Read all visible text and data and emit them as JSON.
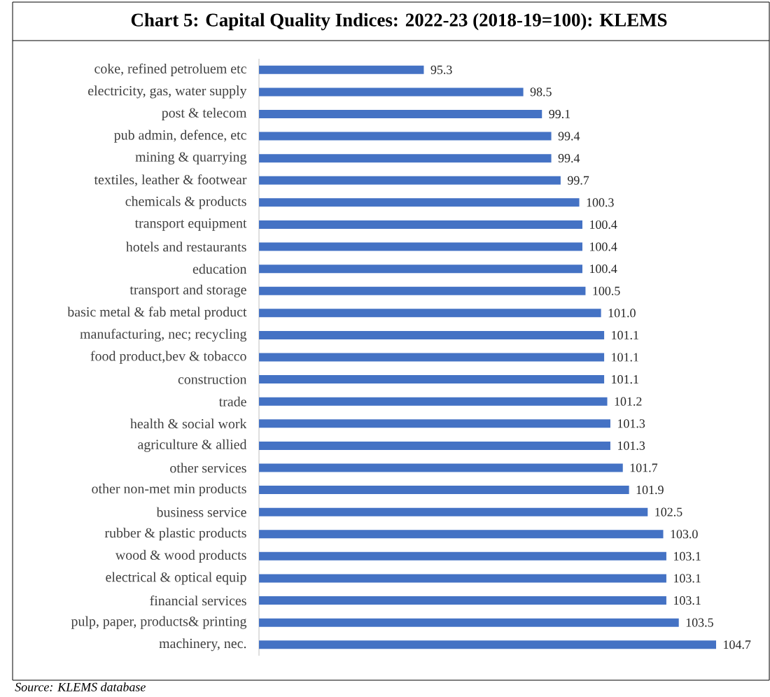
{
  "chart_data": {
    "type": "bar",
    "orientation": "horizontal",
    "title": "Chart 5: Capital Quality Indices: 2022-23 (2018-19=100): KLEMS",
    "categories": [
      "coke, refined petroluem etc",
      "electricity, gas, water supply",
      "post & telecom",
      "pub admin, defence, etc",
      "mining & quarrying",
      "textiles, leather & footwear",
      "chemicals & products",
      "transport equipment",
      "hotels and restaurants",
      "education",
      "transport and storage",
      "basic metal & fab metal product",
      "manufacturing, nec; recycling",
      "food product,bev & tobacco",
      "construction",
      "trade",
      "health & social work",
      "agriculture & allied",
      "other services",
      "other non-met min products",
      "business service",
      "rubber & plastic products",
      "wood & wood products",
      "electrical & optical equip",
      "financial services",
      "pulp, paper, products& printing",
      "machinery, nec."
    ],
    "values": [
      95.3,
      98.5,
      99.1,
      99.4,
      99.4,
      99.7,
      100.3,
      100.4,
      100.4,
      100.4,
      100.5,
      101.0,
      101.1,
      101.1,
      101.1,
      101.2,
      101.3,
      101.3,
      101.7,
      101.9,
      102.5,
      103.0,
      103.1,
      103.1,
      103.1,
      103.5,
      104.7
    ],
    "value_labels": [
      "95.3",
      "98.5",
      "99.1",
      "99.4",
      "99.4",
      "99.7",
      "100.3",
      "100.4",
      "100.4",
      "100.4",
      "100.5",
      "101.0",
      "101.1",
      "101.1",
      "101.1",
      "101.2",
      "101.3",
      "101.3",
      "101.7",
      "101.9",
      "102.5",
      "103.0",
      "103.1",
      "103.1",
      "103.1",
      "103.5",
      "104.7"
    ],
    "color": "#4472c4",
    "xlim": [
      90,
      104.7
    ],
    "annotations": [
      "Source: KLEMS database"
    ]
  }
}
